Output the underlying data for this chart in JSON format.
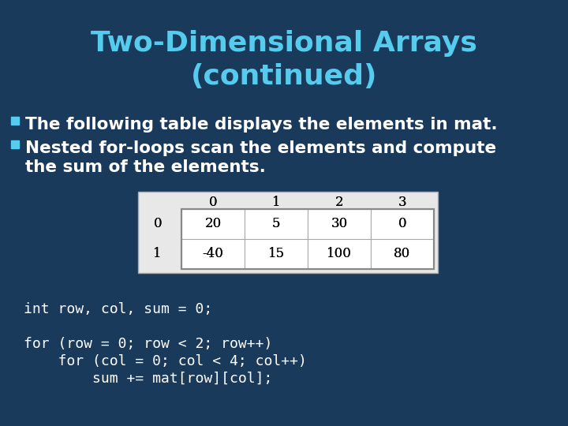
{
  "bg_color": "#1a3a5c",
  "title_line1": "Two-Dimensional Arrays",
  "title_line2": "(continued)",
  "title_color": "#55ccee",
  "title_fontsize": 26,
  "bullet_color": "#55ccee",
  "bullet_text_color": "#ffffff",
  "bullet1": "The following table displays the elements in mat.",
  "bullet2": "Nested for-loops scan the elements and compute",
  "bullet2b": "the sum of the elements.",
  "bullet_fontsize": 15.5,
  "table_data": [
    [
      "20",
      "5",
      "30",
      "0"
    ],
    [
      "-40",
      "15",
      "100",
      "80"
    ]
  ],
  "table_col_headers": [
    "0",
    "1",
    "2",
    "3"
  ],
  "table_row_headers": [
    "0",
    "1"
  ],
  "table_font": 12,
  "table_header_color": "#000000",
  "table_cell_bg": "#f0f0f0",
  "code_color": "#ffffff",
  "code_fontsize": 13,
  "code_lines": [
    "int row, col, sum = 0;",
    "",
    "for (row = 0; row < 2; row++)",
    "    for (col = 0; col < 4; col++)",
    "        sum += mat[row][col];"
  ]
}
